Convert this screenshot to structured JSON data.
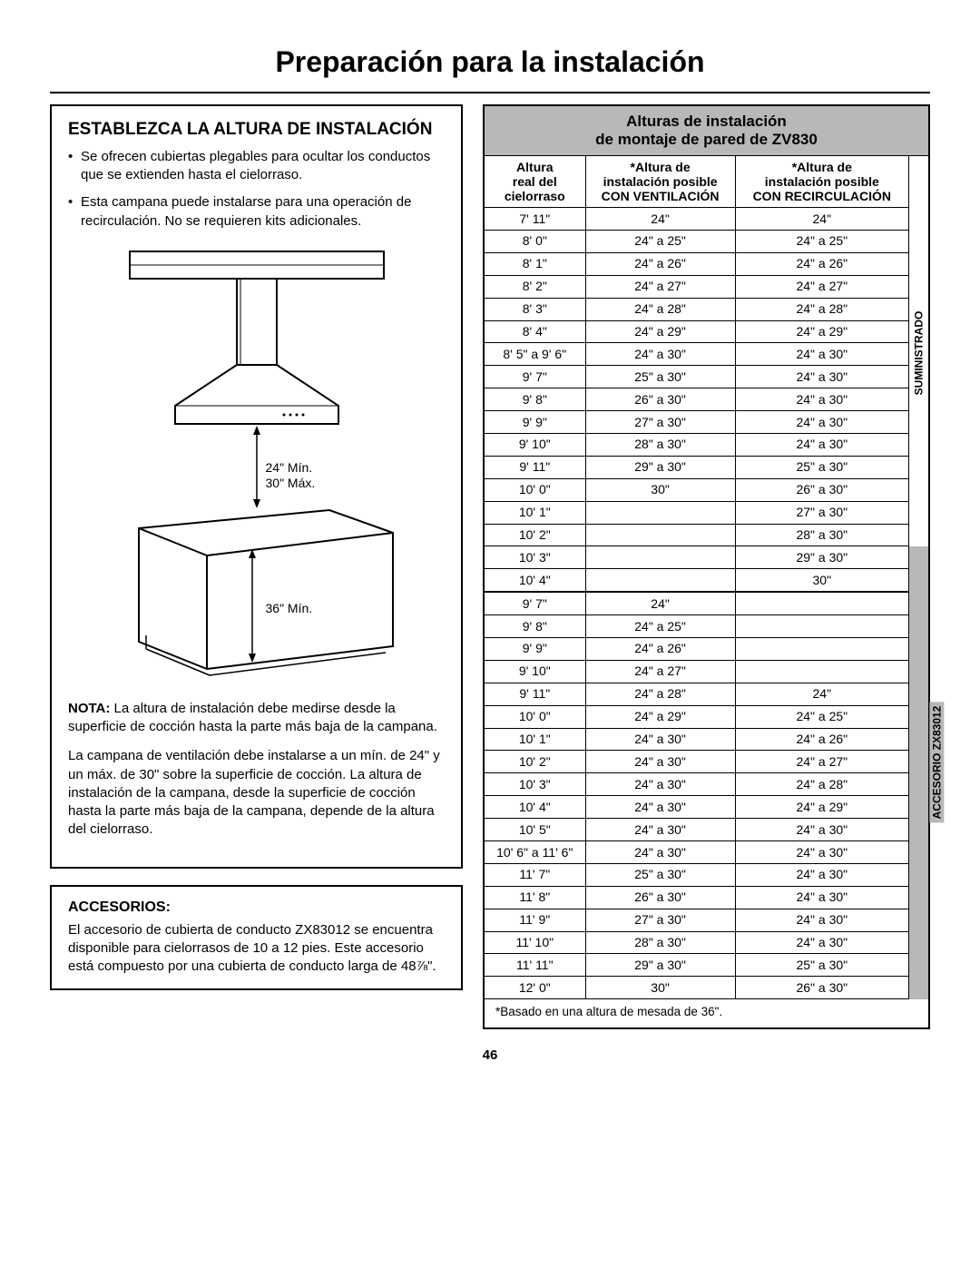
{
  "page": {
    "title": "Preparación para la instalación",
    "number": "46"
  },
  "left": {
    "section1": {
      "title": "ESTABLEZCA LA ALTURA DE INSTALACIÓN",
      "bullets": [
        "Se ofrecen cubiertas plegables para ocultar los conductos que se extienden hasta el cielorraso.",
        "Esta campana puede instalarse para una operación de recirculación. No se requieren kits adicionales."
      ],
      "diagram": {
        "lbl_top1": "24\" Mín.",
        "lbl_top2": "30\" Máx.",
        "lbl_bot": "36\" Mín."
      },
      "note_label": "NOTA:",
      "note_text": " La altura de instalación debe medirse desde la superficie de cocción hasta la parte más baja de la campana.",
      "para2": "La campana de ventilación debe instalarse a un mín. de 24\" y un máx. de 30\" sobre la superficie de cocción. La altura de instalación de la campana, desde la superficie de cocción hasta la parte más baja de la campana, depende de la altura del cielorraso."
    },
    "section2": {
      "title": "ACCESORIOS:",
      "text": "El accesorio de cubierta de conducto ZX83012 se encuentra disponible para cielorrasos de 10 a 12 pies. Este accesorio está compuesto por una cubierta de conducto larga de 48⅞\"."
    }
  },
  "right": {
    "title_line1": "Alturas de instalación",
    "title_line2": "de montaje de pared de ZV830",
    "headers": {
      "c1a": "Altura",
      "c1b": "real del",
      "c1c": "cielorraso",
      "c2a": "*Altura de",
      "c2b": "instalación posible",
      "c2c": "CON VENTILACIÓN",
      "c3a": "*Altura de",
      "c3b": "instalación posible",
      "c3c": "CON RECIRCULACIÓN"
    },
    "rows1": [
      {
        "h": "7' 11\"",
        "v": "24\"",
        "r": "24\""
      },
      {
        "h": "8' 0\"",
        "v": "24\" a 25\"",
        "r": "24\" a 25\""
      },
      {
        "h": "8' 1\"",
        "v": "24\" a 26\"",
        "r": "24\" a 26\""
      },
      {
        "h": "8' 2\"",
        "v": "24\" a 27\"",
        "r": "24\" a 27\""
      },
      {
        "h": "8' 3\"",
        "v": "24\" a 28\"",
        "r": "24\" a 28\""
      },
      {
        "h": "8' 4\"",
        "v": "24\" a 29\"",
        "r": "24\" a 29\""
      },
      {
        "h": "8' 5\" a 9' 6\"",
        "v": "24\" a 30\"",
        "r": "24\" a 30\""
      },
      {
        "h": "9' 7\"",
        "v": "25\" a 30\"",
        "r": "24\" a 30\""
      },
      {
        "h": "9' 8\"",
        "v": "26\" a 30\"",
        "r": "24\" a 30\""
      },
      {
        "h": "9' 9\"",
        "v": "27\" a 30\"",
        "r": "24\" a 30\""
      },
      {
        "h": "9' 10\"",
        "v": "28\" a 30\"",
        "r": "24\" a 30\""
      },
      {
        "h": "9' 11\"",
        "v": "29\" a 30\"",
        "r": "25\" a 30\""
      },
      {
        "h": "10' 0\"",
        "v": "30\"",
        "r": "26\" a 30\""
      },
      {
        "h": "10' 1\"",
        "v": "",
        "r": "27\" a 30\""
      },
      {
        "h": "10' 2\"",
        "v": "",
        "r": "28\" a 30\""
      },
      {
        "h": "10' 3\"",
        "v": "",
        "r": "29\" a 30\""
      },
      {
        "h": "10' 4\"",
        "v": "",
        "r": "30\""
      }
    ],
    "rows2": [
      {
        "h": "9' 7\"",
        "v": "24\"",
        "r": ""
      },
      {
        "h": "9' 8\"",
        "v": "24\" a 25\"",
        "r": ""
      },
      {
        "h": "9' 9\"",
        "v": "24\" a 26\"",
        "r": ""
      },
      {
        "h": "9' 10\"",
        "v": "24\" a 27\"",
        "r": ""
      },
      {
        "h": "9' 11\"",
        "v": "24\" a 28\"",
        "r": "24\""
      },
      {
        "h": "10' 0\"",
        "v": "24\" a 29\"",
        "r": "24\" a 25\""
      },
      {
        "h": "10' 1\"",
        "v": "24\" a 30\"",
        "r": "24\" a 26\""
      },
      {
        "h": "10' 2\"",
        "v": "24\" a 30\"",
        "r": "24\" a 27\""
      },
      {
        "h": "10' 3\"",
        "v": "24\" a 30\"",
        "r": "24\" a 28\""
      },
      {
        "h": "10' 4\"",
        "v": "24\" a 30\"",
        "r": "24\" a 29\""
      },
      {
        "h": "10' 5\"",
        "v": "24\" a 30\"",
        "r": "24\" a 30\""
      },
      {
        "h": "10' 6\" a 11' 6\"",
        "v": "24\" a 30\"",
        "r": "24\" a 30\""
      },
      {
        "h": "11' 7\"",
        "v": "25\" a 30\"",
        "r": "24\" a 30\""
      },
      {
        "h": "11' 8\"",
        "v": "26\" a 30\"",
        "r": "24\" a 30\""
      },
      {
        "h": "11' 9\"",
        "v": "27\" a 30\"",
        "r": "24\" a 30\""
      },
      {
        "h": "11' 10\"",
        "v": "28\" a 30\"",
        "r": "24\" a 30\""
      },
      {
        "h": "11' 11\"",
        "v": "29\" a 30\"",
        "r": "25\" a 30\""
      },
      {
        "h": "12' 0\"",
        "v": "30\"",
        "r": "26\" a 30\""
      }
    ],
    "side_label1": "SUMINISTRADO",
    "side_label2": "ACCESORIO ZX83012",
    "footnote": "*Basado en una altura de mesada de 36\"."
  }
}
